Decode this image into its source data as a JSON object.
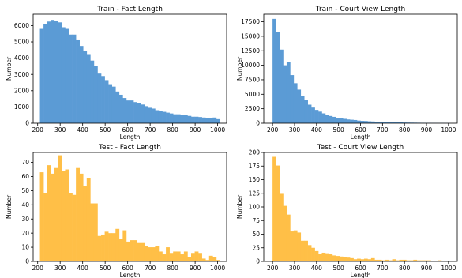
{
  "chart_data": [
    {
      "type": "bar",
      "title": "Train - Fact Length",
      "xlabel": "Length",
      "ylabel": "Number",
      "xlim": [
        180,
        1040
      ],
      "ylim": [
        0,
        6700
      ],
      "xticks": [
        200,
        300,
        400,
        500,
        600,
        700,
        800,
        900,
        1000
      ],
      "yticks": [
        0,
        1000,
        2000,
        3000,
        4000,
        5000,
        6000
      ],
      "bin_start": 210,
      "bin_width": 16,
      "color": "#5b9bd5",
      "values": [
        5800,
        6100,
        6250,
        6350,
        6300,
        6200,
        5900,
        5800,
        5450,
        5450,
        5100,
        4750,
        4450,
        4200,
        3850,
        3500,
        3050,
        2900,
        2650,
        2400,
        2250,
        1950,
        1750,
        1550,
        1400,
        1400,
        1300,
        1250,
        1150,
        1050,
        950,
        900,
        800,
        750,
        700,
        650,
        600,
        550,
        550,
        500,
        500,
        450,
        400,
        400,
        380,
        350,
        320,
        300,
        350,
        250
      ]
    },
    {
      "type": "bar",
      "title": "Train - Court View Length",
      "xlabel": "Length",
      "ylabel": "Number",
      "xlim": [
        160,
        1040
      ],
      "ylim": [
        0,
        18800
      ],
      "xticks": [
        200,
        300,
        400,
        500,
        600,
        700,
        800,
        900,
        1000
      ],
      "yticks": [
        0,
        2500,
        5000,
        7500,
        10000,
        12500,
        15000,
        17500
      ],
      "bin_start": 200,
      "bin_width": 16,
      "color": "#5b9bd5",
      "values": [
        18000,
        15700,
        12700,
        10000,
        10500,
        8300,
        6900,
        5800,
        4700,
        4000,
        3200,
        2700,
        2300,
        2000,
        1700,
        1450,
        1250,
        1100,
        950,
        850,
        750,
        650,
        600,
        550,
        450,
        400,
        380,
        330,
        300,
        270,
        250,
        230,
        200,
        180,
        160,
        150,
        140,
        120,
        110,
        100,
        90,
        80,
        70,
        60,
        55,
        50,
        45,
        40,
        35,
        30
      ]
    },
    {
      "type": "bar",
      "title": "Test - Fact Length",
      "xlabel": "Length",
      "ylabel": "Number",
      "xlim": [
        180,
        1040
      ],
      "ylim": [
        0,
        77
      ],
      "xticks": [
        200,
        300,
        400,
        500,
        600,
        700,
        800,
        900,
        1000
      ],
      "yticks": [
        0,
        10,
        20,
        30,
        40,
        50,
        60,
        70
      ],
      "bin_start": 210,
      "bin_width": 16,
      "color": "#ffbf47",
      "values": [
        63,
        48,
        68,
        62,
        66,
        75,
        64,
        65,
        48,
        47,
        66,
        62,
        53,
        59,
        41,
        41,
        18,
        19,
        21,
        20,
        20,
        23,
        16,
        22,
        14,
        15,
        15,
        13,
        13,
        11,
        10,
        10,
        11,
        7,
        5,
        10,
        6,
        7,
        7,
        5,
        7,
        3,
        6,
        7,
        6,
        2,
        1,
        4,
        3,
        1
      ]
    },
    {
      "type": "bar",
      "title": "Test - Court View Length",
      "xlabel": "Length",
      "ylabel": "Number",
      "xlim": [
        160,
        1040
      ],
      "ylim": [
        0,
        200
      ],
      "xticks": [
        200,
        300,
        400,
        500,
        600,
        700,
        800,
        900,
        1000
      ],
      "yticks": [
        0,
        25,
        50,
        75,
        100,
        125,
        150,
        175,
        200
      ],
      "bin_start": 200,
      "bin_width": 16,
      "color": "#ffbf47",
      "values": [
        192,
        176,
        124,
        102,
        86,
        55,
        57,
        53,
        38,
        38,
        30,
        25,
        19,
        14,
        16,
        15,
        13,
        11,
        10,
        9,
        8,
        7,
        6,
        4,
        5,
        4,
        5,
        4,
        6,
        3,
        3,
        2,
        3,
        2,
        4,
        2,
        3,
        3,
        2,
        2,
        3,
        2,
        2,
        2,
        2,
        1,
        1,
        2,
        1,
        1
      ]
    }
  ]
}
